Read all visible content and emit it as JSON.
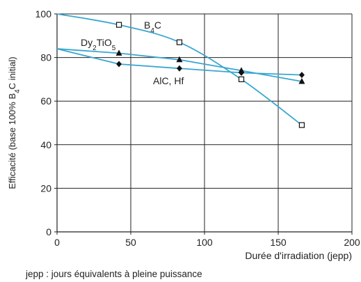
{
  "chart_data": {
    "type": "line",
    "title": "",
    "xlabel": "Durée d'irradiation (jepp)",
    "ylabel_parts": [
      "Efficacité (base 100% B",
      "4",
      "C initial)"
    ],
    "xlim": [
      0,
      200
    ],
    "ylim": [
      0,
      100
    ],
    "xticks": [
      0,
      50,
      100,
      150,
      200
    ],
    "yticks": [
      0,
      20,
      40,
      60,
      80,
      100
    ],
    "grid": true,
    "line_color": "#3aa6cf",
    "series": [
      {
        "name": "B4C",
        "label_parts": [
          "B",
          "4",
          "C"
        ],
        "marker": "open-square",
        "x": [
          0,
          42,
          83,
          125,
          166
        ],
        "y": [
          100,
          95,
          87,
          70,
          49
        ]
      },
      {
        "name": "Dy2TiO5",
        "label_parts": [
          "Dy",
          "2",
          "TiO",
          "5"
        ],
        "marker": "filled-triangle",
        "x": [
          0,
          42,
          83,
          125,
          166
        ],
        "y": [
          84,
          82,
          79,
          74,
          69
        ]
      },
      {
        "name": "AlC, Hf",
        "label_parts": [
          "AlC, Hf"
        ],
        "marker": "filled-diamond",
        "x": [
          0,
          42,
          83,
          125,
          166
        ],
        "y": [
          84,
          77,
          75,
          73,
          72
        ]
      }
    ],
    "footnote": "jepp : jours équivalents à pleine puissance"
  }
}
